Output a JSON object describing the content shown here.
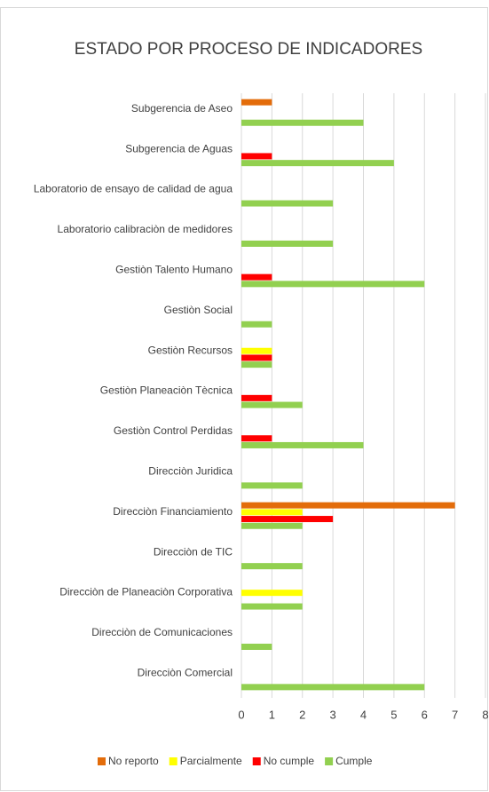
{
  "chart_data": {
    "type": "hbar",
    "title": "ESTADO POR PROCESO DE INDICADORES",
    "categories": [
      "Subgerencia de Aseo",
      "Subgerencia de Aguas",
      "Laboratorio de ensayo de calidad de agua",
      "Laboratorio calibraciòn de medidores",
      "Gestiòn Talento Humano",
      "Gestiòn Social",
      "Gestiòn Recursos",
      "Gestiòn Planeaciòn Tècnica",
      "Gestiòn Control Perdidas",
      "Direcciòn Juridica",
      "Direcciòn Financiamiento",
      "Direcciòn de TIC",
      "Direcciòn de Planeaciòn Corporativa",
      "Direcciòn de Comunicaciones",
      "Direcciòn Comercial"
    ],
    "series": [
      {
        "name": "No reporto",
        "color": "#e36c0a",
        "values": [
          1,
          0,
          0,
          0,
          0,
          0,
          0,
          0,
          0,
          0,
          7,
          0,
          0,
          0,
          0
        ]
      },
      {
        "name": "Parcialmente",
        "color": "#ffff00",
        "values": [
          0,
          0,
          0,
          0,
          0,
          0,
          1,
          0,
          0,
          0,
          2,
          0,
          2,
          0,
          0
        ]
      },
      {
        "name": "No cumple",
        "color": "#ff0000",
        "values": [
          0,
          1,
          0,
          0,
          1,
          0,
          1,
          1,
          1,
          0,
          3,
          0,
          0,
          0,
          0
        ]
      },
      {
        "name": "Cumple",
        "color": "#92d050",
        "values": [
          4,
          5,
          3,
          3,
          6,
          1,
          1,
          2,
          4,
          2,
          2,
          2,
          2,
          1,
          6
        ]
      }
    ],
    "xlim": [
      0,
      8
    ],
    "xticks": [
      0,
      1,
      2,
      3,
      4,
      5,
      6,
      7,
      8
    ],
    "grid": true,
    "legend": "bottom"
  }
}
